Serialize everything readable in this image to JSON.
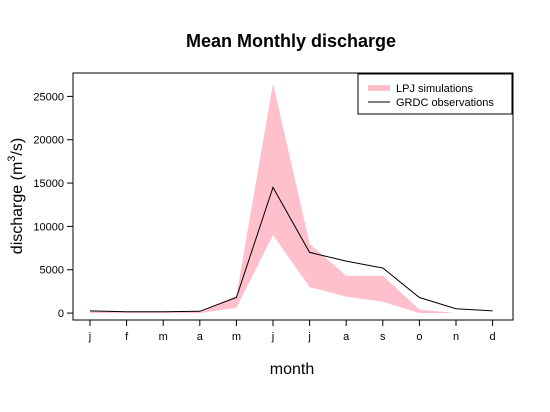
{
  "chart_data": {
    "type": "area",
    "title": "Mean Monthly discharge",
    "xlabel": "month",
    "ylabel": "discharge (m",
    "ylabel_sup": "3",
    "ylabel_tail": "/s)",
    "categories": [
      "j",
      "f",
      "m",
      "a",
      "m",
      "j",
      "j",
      "a",
      "s",
      "o",
      "n",
      "d"
    ],
    "ylim": [
      -800,
      27700
    ],
    "yticks": [
      0,
      5000,
      10000,
      15000,
      20000,
      25000
    ],
    "grid": false,
    "legend_position": "top-right",
    "band": {
      "name": "LPJ simulations",
      "color": "#ffc0cb",
      "lower": [
        0,
        0,
        0,
        0,
        600,
        9000,
        3000,
        1900,
        1300,
        0,
        0,
        0
      ],
      "upper": [
        200,
        150,
        150,
        200,
        2000,
        26500,
        8000,
        4300,
        4300,
        400,
        0,
        0
      ]
    },
    "series": [
      {
        "name": "GRDC observations",
        "color": "#000000",
        "values": [
          250,
          150,
          150,
          200,
          1800,
          14500,
          7000,
          6000,
          5200,
          1800,
          500,
          250
        ]
      }
    ]
  }
}
